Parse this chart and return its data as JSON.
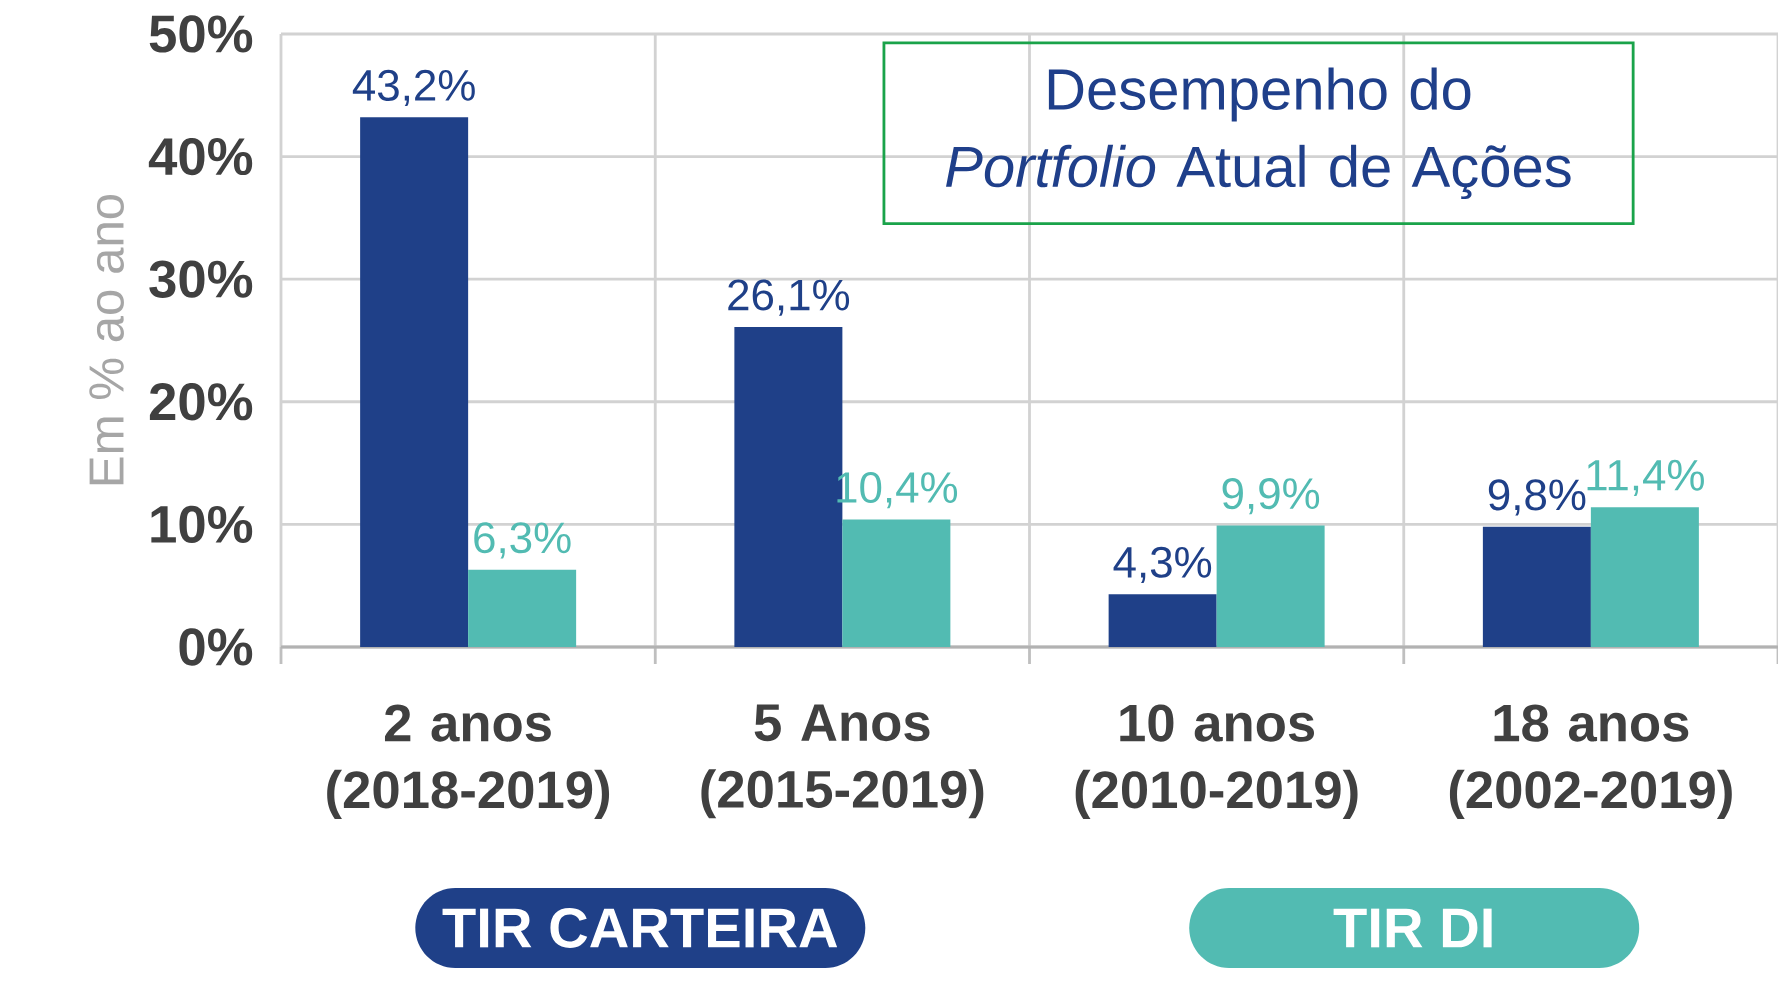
{
  "chart_data": {
    "type": "bar",
    "title": "Desempenho do *Portfolio* Atual de Ações",
    "ylabel": "Em % ao ano",
    "categories": [
      "2 anos (2018-2019)",
      "5 Anos (2015-2019)",
      "10 anos (2010-2019)",
      "18 anos (2002-2019)"
    ],
    "series": [
      {
        "name": "TIR CARTEIRA",
        "color": "#1f4088",
        "values": [
          43.2,
          26.1,
          4.3,
          9.8
        ],
        "value_labels": [
          "43,2%",
          "26,1%",
          "4,3%",
          "9,8%"
        ]
      },
      {
        "name": "TIR DI",
        "color": "#52bbb2",
        "values": [
          6.3,
          10.4,
          9.9,
          11.4
        ],
        "value_labels": [
          "6,3%",
          "10,4%",
          "9,9%",
          "11,4%"
        ]
      }
    ],
    "ylim": [
      0,
      50
    ],
    "yticks": [
      {
        "value": 0,
        "label": "0%"
      },
      {
        "value": 10,
        "label": "10%"
      },
      {
        "value": 20,
        "label": "20%"
      },
      {
        "value": 30,
        "label": "30%"
      },
      {
        "value": 40,
        "label": "40%"
      },
      {
        "value": 50,
        "label": "50%"
      }
    ],
    "grid": true,
    "legend": "bottom"
  }
}
